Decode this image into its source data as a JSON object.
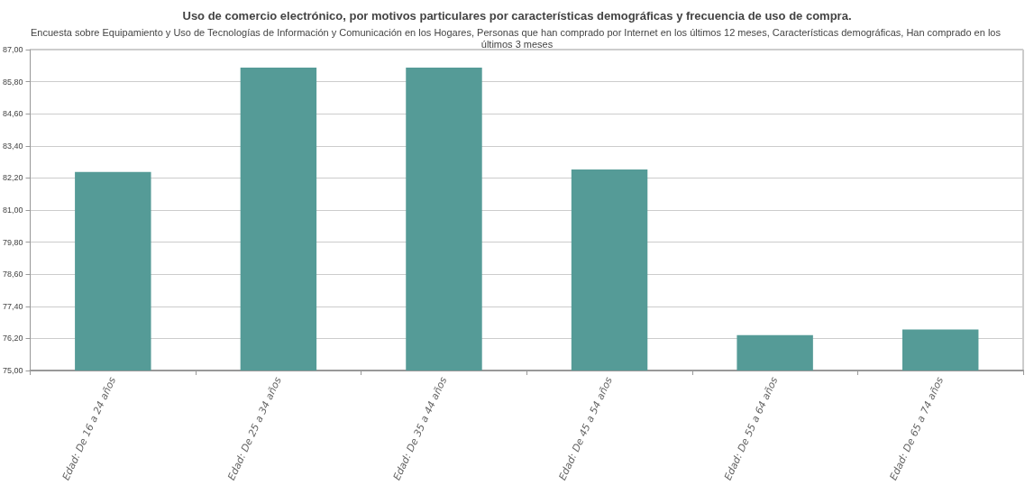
{
  "chart_data": {
    "type": "bar",
    "title": "Uso de comercio electrónico, por motivos particulares por características demográficas y frecuencia de uso de compra.",
    "subtitle": "Encuesta sobre Equipamiento y Uso de Tecnologías de Información y Comunicación en los Hogares, Personas que han comprado por Internet en los últimos 12 meses, Características demográficas, Han comprado en los últimos 3 meses",
    "categories": [
      "Edad: De 16 a 24 años",
      "Edad: De 25 a 34 años",
      "Edad: De 35 a 44 años",
      "Edad: De 45 a 54 años",
      "Edad: De 55 a 64 años",
      "Edad: De 65 a 74 años"
    ],
    "values": [
      82.42,
      86.33,
      86.33,
      82.52,
      76.32,
      76.53
    ],
    "color": "#559b97",
    "ylim": [
      75,
      87
    ],
    "yticks": [
      {
        "value": 75,
        "label": "75,00"
      },
      {
        "value": 76.2,
        "label": "76,20"
      },
      {
        "value": 77.4,
        "label": "77,40"
      },
      {
        "value": 78.6,
        "label": "78,60"
      },
      {
        "value": 79.8,
        "label": "79,80"
      },
      {
        "value": 81,
        "label": "81,00"
      },
      {
        "value": 82.2,
        "label": "82,20"
      },
      {
        "value": 83.4,
        "label": "83,40"
      },
      {
        "value": 84.6,
        "label": "84,60"
      },
      {
        "value": 85.8,
        "label": "85,80"
      },
      {
        "value": 87,
        "label": "87,00"
      }
    ],
    "grid": "y"
  }
}
